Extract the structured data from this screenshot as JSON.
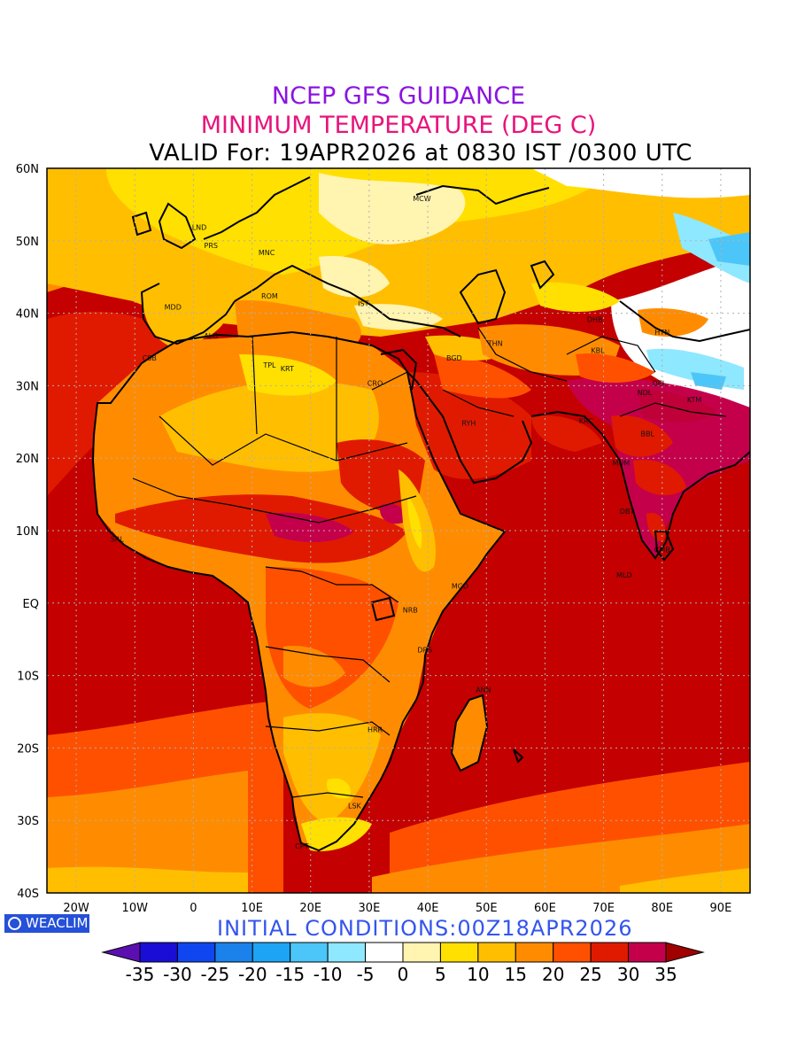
{
  "header": {
    "title": "NCEP GFS GUIDANCE",
    "subtitle": "MINIMUM TEMPERATURE (DEG C)",
    "valid_line": "VALID For: 19APR2026 at 0830 IST /0300 UTC"
  },
  "colors": {
    "title": "#8b14e0",
    "subtitle": "#e8147c",
    "init": "#3355ee",
    "ocean_hot": "#c40000",
    "land_hot": "#e83a00"
  },
  "axes": {
    "lat_labels": [
      "60N",
      "50N",
      "40N",
      "30N",
      "20N",
      "10N",
      "EQ",
      "10S",
      "20S",
      "30S",
      "40S"
    ],
    "lat_values": [
      60,
      50,
      40,
      30,
      20,
      10,
      0,
      -10,
      -20,
      -30,
      -40
    ],
    "lon_labels": [
      "20W",
      "10W",
      "0",
      "10E",
      "20E",
      "30E",
      "40E",
      "50E",
      "60E",
      "70E",
      "80E",
      "90E"
    ],
    "lon_values": [
      -20,
      -10,
      0,
      10,
      20,
      30,
      40,
      50,
      60,
      70,
      80,
      90
    ],
    "lon_range": [
      -25,
      95
    ],
    "lat_range": [
      -40,
      60
    ]
  },
  "stations": [
    {
      "code": "MCW",
      "lon": 39,
      "lat": 55.5
    },
    {
      "code": "LND",
      "lon": 1,
      "lat": 51.5
    },
    {
      "code": "PRS",
      "lon": 3,
      "lat": 49
    },
    {
      "code": "MNC",
      "lon": 12.5,
      "lat": 48
    },
    {
      "code": "ROM",
      "lon": 13,
      "lat": 42
    },
    {
      "code": "IST",
      "lon": 29,
      "lat": 41
    },
    {
      "code": "MDD",
      "lon": -3.5,
      "lat": 40.5
    },
    {
      "code": "ALG",
      "lon": 3,
      "lat": 36.5
    },
    {
      "code": "CSB",
      "lon": -7.5,
      "lat": 33.5
    },
    {
      "code": "TPL",
      "lon": 13,
      "lat": 32.5
    },
    {
      "code": "KRT",
      "lon": 16,
      "lat": 32
    },
    {
      "code": "CRO",
      "lon": 31,
      "lat": 30
    },
    {
      "code": "BGD",
      "lon": 44.5,
      "lat": 33.5
    },
    {
      "code": "THN",
      "lon": 51.5,
      "lat": 35.5
    },
    {
      "code": "DHB",
      "lon": 68.5,
      "lat": 38.8
    },
    {
      "code": "HTN",
      "lon": 80,
      "lat": 37
    },
    {
      "code": "KBL",
      "lon": 69,
      "lat": 34.5
    },
    {
      "code": "RYH",
      "lon": 47,
      "lat": 24.5
    },
    {
      "code": "KRC",
      "lon": 67,
      "lat": 24.8
    },
    {
      "code": "NDL",
      "lon": 77,
      "lat": 28.7
    },
    {
      "code": "KTM",
      "lon": 85.5,
      "lat": 27.7
    },
    {
      "code": "MUM",
      "lon": 73,
      "lat": 19
    },
    {
      "code": "DEL",
      "lon": 79.5,
      "lat": 30
    },
    {
      "code": "BBL",
      "lon": 77.5,
      "lat": 23
    },
    {
      "code": "DBT",
      "lon": 74,
      "lat": 12.3
    },
    {
      "code": "CMB",
      "lon": 80,
      "lat": 7
    },
    {
      "code": "MLD",
      "lon": 73.5,
      "lat": 3.5
    },
    {
      "code": "SRL",
      "lon": -13,
      "lat": 8.5
    },
    {
      "code": "MGD",
      "lon": 45.5,
      "lat": 2
    },
    {
      "code": "NRB",
      "lon": 37,
      "lat": -1.3
    },
    {
      "code": "DRS",
      "lon": 39.5,
      "lat": -6.8
    },
    {
      "code": "ANN",
      "lon": 49.5,
      "lat": -12.3
    },
    {
      "code": "HRR",
      "lon": 31,
      "lat": -17.8
    },
    {
      "code": "LSK",
      "lon": 27.5,
      "lat": -28.3
    },
    {
      "code": "CPT",
      "lon": 18.5,
      "lat": -33.9
    }
  ],
  "colorbar": {
    "labels": [
      "-35",
      "-30",
      "-25",
      "-20",
      "-15",
      "-10",
      "-5",
      "0",
      "5",
      "10",
      "15",
      "20",
      "25",
      "30",
      "35"
    ],
    "colors": [
      "#5b0fb0",
      "#1a0ed6",
      "#0f46f0",
      "#1a82ea",
      "#1ea4f4",
      "#4cc6f8",
      "#8ee8ff",
      "#ffffff",
      "#fff4b0",
      "#ffe000",
      "#ffbf00",
      "#ff8c00",
      "#ff5000",
      "#e01a00",
      "#c4004a",
      "#a00000"
    ]
  },
  "footer": {
    "logo_text": "WEACLIM",
    "init_conditions": "INITIAL CONDITIONS:00Z18APR2026"
  }
}
